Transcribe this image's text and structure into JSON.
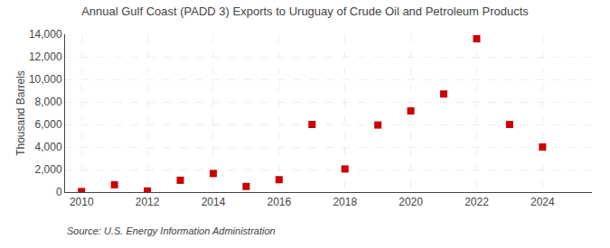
{
  "chart_data": {
    "type": "scatter",
    "title": "Annual Gulf Coast (PADD 3) Exports to Uruguay of Crude Oil and Petroleum Products",
    "y_label": "Thousand Barrels",
    "annotations": [
      "Source: U.S. Energy Information Administration"
    ],
    "x": [
      2010,
      2011,
      2012,
      2013,
      2014,
      2015,
      2016,
      2017,
      2018,
      2019,
      2020,
      2021,
      2022,
      2023,
      2024
    ],
    "values": [
      50,
      650,
      100,
      1050,
      1650,
      500,
      1100,
      6000,
      2050,
      5950,
      7200,
      8700,
      13600,
      6000,
      4000
    ],
    "color": "#cc0000",
    "marker": "square",
    "xlim": [
      2009.5,
      2025.5
    ],
    "xticks": [
      2010,
      2012,
      2014,
      2016,
      2018,
      2020,
      2022,
      2024
    ],
    "ylim": [
      0,
      14000
    ],
    "yticks": [
      0,
      {
        "value": 2000,
        "label": "2,000"
      },
      {
        "value": 4000,
        "label": "4,000"
      },
      {
        "value": 6000,
        "label": "6,000"
      },
      {
        "value": 8000,
        "label": "8,000"
      },
      {
        "value": 10000,
        "label": "10,000"
      },
      {
        "value": 12000,
        "label": "12,000"
      },
      {
        "value": 14000,
        "label": "14,000"
      }
    ],
    "grid": true
  }
}
